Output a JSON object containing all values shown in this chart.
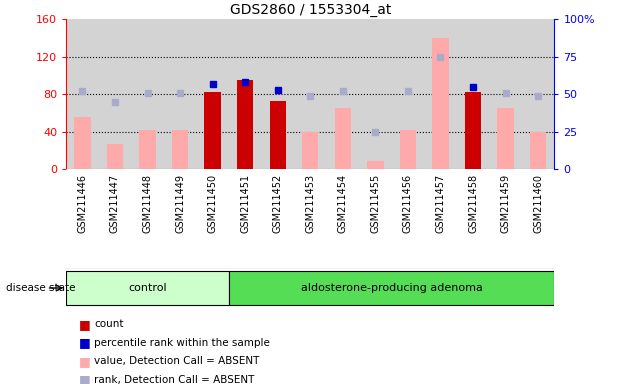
{
  "title": "GDS2860 / 1553304_at",
  "samples": [
    "GSM211446",
    "GSM211447",
    "GSM211448",
    "GSM211449",
    "GSM211450",
    "GSM211451",
    "GSM211452",
    "GSM211453",
    "GSM211454",
    "GSM211455",
    "GSM211456",
    "GSM211457",
    "GSM211458",
    "GSM211459",
    "GSM211460"
  ],
  "count_values": [
    null,
    null,
    null,
    null,
    82,
    95,
    73,
    null,
    null,
    null,
    null,
    null,
    82,
    null,
    null
  ],
  "percentile_rank": [
    null,
    null,
    null,
    null,
    57,
    58,
    53,
    null,
    null,
    null,
    null,
    null,
    55,
    null,
    null
  ],
  "value_absent": [
    55,
    27,
    42,
    42,
    null,
    null,
    null,
    40,
    65,
    8,
    42,
    140,
    null,
    65,
    40
  ],
  "rank_absent": [
    52,
    45,
    51,
    51,
    null,
    null,
    null,
    49,
    52,
    25,
    52,
    75,
    null,
    51,
    49
  ],
  "n_control": 5,
  "n_adenoma": 10,
  "ylim_left": [
    0,
    160
  ],
  "ylim_right": [
    0,
    100
  ],
  "yticks_left": [
    0,
    40,
    80,
    120,
    160
  ],
  "yticks_right": [
    0,
    25,
    50,
    75,
    100
  ],
  "color_count": "#cc0000",
  "color_percentile": "#0000cc",
  "color_value_absent": "#ffaaaa",
  "color_rank_absent": "#aaaacc",
  "color_control_bg": "#ccffcc",
  "color_adenoma_bg": "#55dd55",
  "color_plot_bg": "#d3d3d3",
  "disease_state_label": "disease state",
  "control_label": "control",
  "adenoma_label": "aldosterone-producing adenoma",
  "legend_count": "count",
  "legend_percentile": "percentile rank within the sample",
  "legend_value_absent": "value, Detection Call = ABSENT",
  "legend_rank_absent": "rank, Detection Call = ABSENT"
}
